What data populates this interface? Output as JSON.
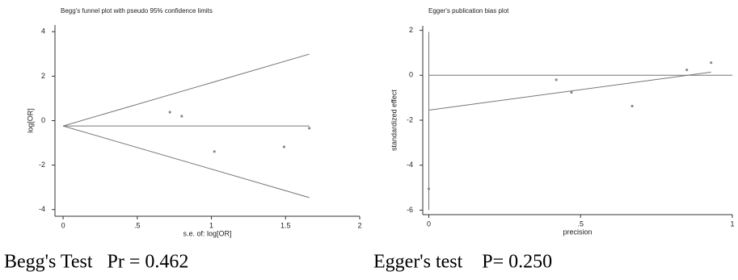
{
  "chart_data": [
    {
      "type": "scatter",
      "title": "Begg's funnel plot with pseudo 95% confidence limits",
      "xlabel": "s.e. of: log[OR]",
      "ylabel": "log[OR]",
      "x": [
        0.72,
        0.8,
        1.02,
        1.49,
        1.66
      ],
      "values": [
        0.38,
        0.2,
        -1.39,
        -1.18,
        -0.34
      ],
      "color": "#8a8a8a",
      "lines": [
        {
          "x": [
            0,
            1.66
          ],
          "y": [
            -0.24,
            -0.24
          ]
        },
        {
          "x": [
            0,
            1.66
          ],
          "y": [
            -0.24,
            2.99
          ]
        },
        {
          "x": [
            0,
            1.66
          ],
          "y": [
            -0.24,
            -3.46
          ]
        }
      ],
      "xlim": [
        -0.055,
        2.0
      ],
      "ylim": [
        -4.3,
        4.3
      ],
      "xticks": [
        0,
        {
          "value": 0.5,
          "label": ".5"
        },
        1,
        {
          "value": 1.5,
          "label": "1.5"
        },
        2
      ],
      "yticks": [
        -4,
        -2,
        0,
        2,
        4
      ],
      "caption": "Begg's Test   Pr = 0.462"
    },
    {
      "type": "scatter",
      "title": "Egger's publication bias plot",
      "xlabel": "precision",
      "ylabel": "standardized effect",
      "x": [
        0,
        0.42,
        0.47,
        0.67,
        0.85,
        0.93
      ],
      "values": [
        -5.05,
        -0.2,
        -0.76,
        -1.37,
        0.24,
        0.56
      ],
      "color": "#8a8a8a",
      "lines": [
        {
          "x": [
            0,
            1.0
          ],
          "y": [
            0,
            0
          ]
        },
        {
          "x": [
            0,
            0.93
          ],
          "y": [
            -1.55,
            0.14
          ]
        },
        {
          "x": [
            0,
            0
          ],
          "y": [
            1.93,
            -6.0
          ]
        }
      ],
      "xlim": [
        -0.02,
        1.0
      ],
      "ylim": [
        -6.2,
        2.2
      ],
      "xticks": [
        0,
        {
          "value": 0.5,
          "label": ".5"
        },
        1
      ],
      "yticks": [
        -6,
        -4,
        -2,
        0,
        2
      ],
      "caption": "Egger's test    P= 0.250"
    }
  ]
}
